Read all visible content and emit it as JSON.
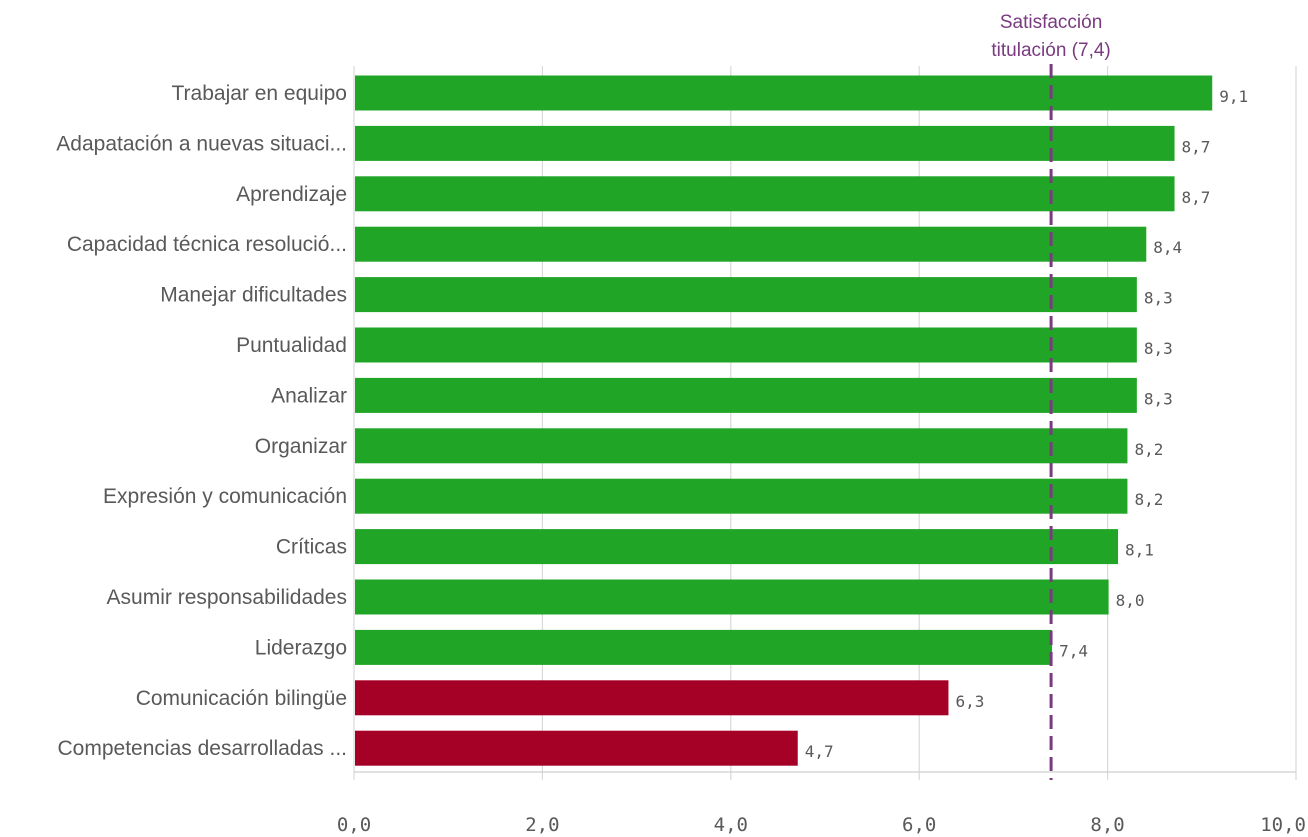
{
  "chart_data": {
    "type": "bar",
    "orientation": "horizontal",
    "categories": [
      "Trabajar en equipo",
      "Adapatación a nuevas situaci...",
      "Aprendizaje",
      "Capacidad técnica resolució...",
      "Manejar dificultades",
      "Puntualidad",
      "Analizar",
      "Organizar",
      "Expresión y comunicación",
      "Críticas",
      "Asumir responsabilidades",
      "Liderazgo",
      "Comunicación bilingüe",
      "Competencias desarrolladas ..."
    ],
    "values": [
      9.1,
      8.7,
      8.7,
      8.4,
      8.3,
      8.3,
      8.3,
      8.2,
      8.2,
      8.1,
      8.0,
      7.4,
      6.3,
      4.7
    ],
    "value_labels": [
      "9,1",
      "8,7",
      "8,7",
      "8,4",
      "8,3",
      "8,3",
      "8,3",
      "8,2",
      "8,2",
      "8,1",
      "8,0",
      "7,4",
      "6,3",
      "4,7"
    ],
    "xlim": [
      0,
      10
    ],
    "x_ticks": [
      0,
      2,
      4,
      6,
      8,
      10
    ],
    "x_tick_labels": [
      "0,0",
      "2,0",
      "4,0",
      "6,0",
      "8,0",
      "10,0"
    ],
    "grid": true,
    "reference_line": {
      "value": 7.4,
      "label_line1": "Satisfacción",
      "label_line2": "titulación (7,4)",
      "color": "#7a3a80",
      "style": "dashed"
    },
    "colors": {
      "above_reference": "#21a527",
      "below_reference": "#a50026"
    }
  }
}
